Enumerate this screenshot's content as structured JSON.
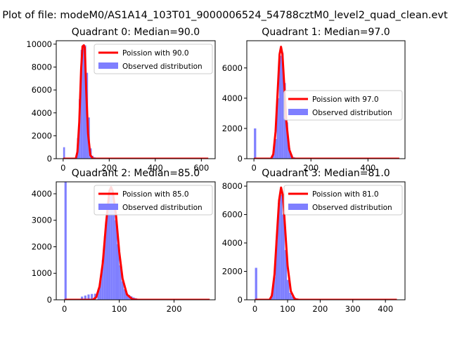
{
  "figure": {
    "suptitle": "Plot of file: modeM0/AS1A14_103T01_9000006524_54788cztM0_level2_quad_clean.evt"
  },
  "chart_data": [
    {
      "type": "bar",
      "title": "Quadrant 0: Median=90.0",
      "xlabel": "",
      "ylabel": "",
      "xlim": [
        -30,
        660
      ],
      "ylim": [
        0,
        10300
      ],
      "xticks": [
        0,
        200,
        400,
        600
      ],
      "yticks": [
        0,
        2000,
        4000,
        6000,
        8000,
        10000
      ],
      "hist_bins": [
        [
          0,
          8,
          1000
        ],
        [
          60,
          8,
          1800
        ],
        [
          68,
          8,
          5200
        ],
        [
          76,
          8,
          9500
        ],
        [
          84,
          8,
          9950
        ],
        [
          92,
          8,
          9900
        ],
        [
          100,
          8,
          7500
        ],
        [
          108,
          8,
          3600
        ],
        [
          116,
          8,
          900
        ],
        [
          124,
          8,
          250
        ],
        [
          132,
          8,
          120
        ],
        [
          140,
          8,
          60
        ]
      ],
      "poisson_curve": [
        [
          0,
          0
        ],
        [
          55,
          0
        ],
        [
          62,
          600
        ],
        [
          70,
          3200
        ],
        [
          78,
          7800
        ],
        [
          84,
          9800
        ],
        [
          90,
          9900
        ],
        [
          94,
          9700
        ],
        [
          100,
          6000
        ],
        [
          108,
          2200
        ],
        [
          118,
          300
        ],
        [
          130,
          0
        ],
        [
          630,
          0
        ]
      ],
      "series": [
        {
          "name": "Poission with 90.0",
          "color": "#ff0000",
          "kind": "line"
        },
        {
          "name": "Observed distribution",
          "color": "#7f7fff",
          "kind": "hist"
        }
      ],
      "legend_loc": "upper right"
    },
    {
      "type": "bar",
      "title": "Quadrant 1: Median=97.0",
      "xlabel": "",
      "ylabel": "",
      "xlim": [
        -25,
        530
      ],
      "ylim": [
        0,
        7800
      ],
      "xticks": [
        0,
        200,
        400
      ],
      "yticks": [
        0,
        2000,
        4000,
        6000
      ],
      "hist_bins": [
        [
          0,
          8,
          2000
        ],
        [
          64,
          8,
          300
        ],
        [
          72,
          8,
          1300
        ],
        [
          80,
          8,
          4000
        ],
        [
          88,
          8,
          6800
        ],
        [
          96,
          8,
          7000
        ],
        [
          104,
          8,
          5000
        ],
        [
          112,
          8,
          2400
        ],
        [
          120,
          8,
          700
        ],
        [
          128,
          8,
          250
        ],
        [
          136,
          8,
          100
        ]
      ],
      "poisson_curve": [
        [
          0,
          0
        ],
        [
          60,
          0
        ],
        [
          68,
          300
        ],
        [
          76,
          1800
        ],
        [
          84,
          4700
        ],
        [
          90,
          6900
        ],
        [
          95,
          7400
        ],
        [
          100,
          6900
        ],
        [
          106,
          5000
        ],
        [
          114,
          2400
        ],
        [
          124,
          600
        ],
        [
          136,
          0
        ],
        [
          510,
          0
        ]
      ],
      "series": [
        {
          "name": "Poission with 97.0",
          "color": "#ff0000",
          "kind": "line"
        },
        {
          "name": "Observed distribution",
          "color": "#7f7fff",
          "kind": "hist"
        }
      ],
      "legend_loc": "center right"
    },
    {
      "type": "bar",
      "title": "Quadrant 2: Median=85.0",
      "xlabel": "",
      "ylabel": "",
      "xlim": [
        -15,
        275
      ],
      "ylim": [
        0,
        4450
      ],
      "xticks": [
        0,
        100,
        200
      ],
      "yticks": [
        0,
        1000,
        2000,
        3000,
        4000
      ],
      "hist_bins": [
        [
          0,
          4,
          4450
        ],
        [
          30,
          4,
          120
        ],
        [
          36,
          4,
          160
        ],
        [
          42,
          4,
          200
        ],
        [
          48,
          4,
          220
        ],
        [
          54,
          4,
          230
        ],
        [
          60,
          4,
          400
        ],
        [
          64,
          4,
          800
        ],
        [
          68,
          4,
          1500
        ],
        [
          72,
          4,
          2400
        ],
        [
          76,
          4,
          3300
        ],
        [
          80,
          4,
          3900
        ],
        [
          84,
          4,
          4100
        ],
        [
          88,
          4,
          3700
        ],
        [
          92,
          4,
          3000
        ],
        [
          96,
          4,
          2100
        ],
        [
          100,
          4,
          1300
        ],
        [
          104,
          4,
          700
        ],
        [
          108,
          4,
          400
        ],
        [
          112,
          4,
          250
        ],
        [
          116,
          4,
          180
        ],
        [
          120,
          4,
          130
        ],
        [
          124,
          4,
          90
        ],
        [
          128,
          4,
          60
        ],
        [
          134,
          4,
          40
        ]
      ],
      "poisson_curve": [
        [
          0,
          0
        ],
        [
          52,
          0
        ],
        [
          58,
          100
        ],
        [
          64,
          500
        ],
        [
          70,
          1400
        ],
        [
          76,
          2900
        ],
        [
          82,
          4100
        ],
        [
          85,
          4250
        ],
        [
          88,
          4100
        ],
        [
          94,
          3200
        ],
        [
          100,
          1800
        ],
        [
          106,
          800
        ],
        [
          114,
          200
        ],
        [
          124,
          20
        ],
        [
          135,
          0
        ],
        [
          265,
          0
        ]
      ],
      "series": [
        {
          "name": "Poission with 85.0",
          "color": "#ff0000",
          "kind": "line"
        },
        {
          "name": "Observed distribution",
          "color": "#7f7fff",
          "kind": "hist"
        }
      ],
      "legend_loc": "upper right"
    },
    {
      "type": "bar",
      "title": "Quadrant 3: Median=81.0",
      "xlabel": "",
      "ylabel": "",
      "xlim": [
        -25,
        460
      ],
      "ylim": [
        0,
        8300
      ],
      "xticks": [
        0,
        100,
        200,
        300,
        400
      ],
      "yticks": [
        0,
        2000,
        4000,
        6000,
        8000
      ],
      "hist_bins": [
        [
          0,
          7,
          2250
        ],
        [
          49,
          7,
          450
        ],
        [
          56,
          7,
          1600
        ],
        [
          63,
          7,
          4200
        ],
        [
          70,
          7,
          6800
        ],
        [
          77,
          7,
          7400
        ],
        [
          84,
          7,
          6000
        ],
        [
          91,
          7,
          3500
        ],
        [
          98,
          7,
          1400
        ],
        [
          105,
          7,
          500
        ],
        [
          112,
          7,
          250
        ],
        [
          119,
          7,
          150
        ],
        [
          126,
          7,
          80
        ]
      ],
      "poisson_curve": [
        [
          0,
          0
        ],
        [
          45,
          0
        ],
        [
          52,
          300
        ],
        [
          60,
          1800
        ],
        [
          68,
          4800
        ],
        [
          74,
          7000
        ],
        [
          80,
          7900
        ],
        [
          86,
          7300
        ],
        [
          92,
          5200
        ],
        [
          100,
          2400
        ],
        [
          110,
          600
        ],
        [
          122,
          50
        ],
        [
          135,
          0
        ],
        [
          435,
          0
        ]
      ],
      "series": [
        {
          "name": "Poission with 81.0",
          "color": "#ff0000",
          "kind": "line"
        },
        {
          "name": "Observed distribution",
          "color": "#7f7fff",
          "kind": "hist"
        }
      ],
      "legend_loc": "upper right"
    }
  ]
}
